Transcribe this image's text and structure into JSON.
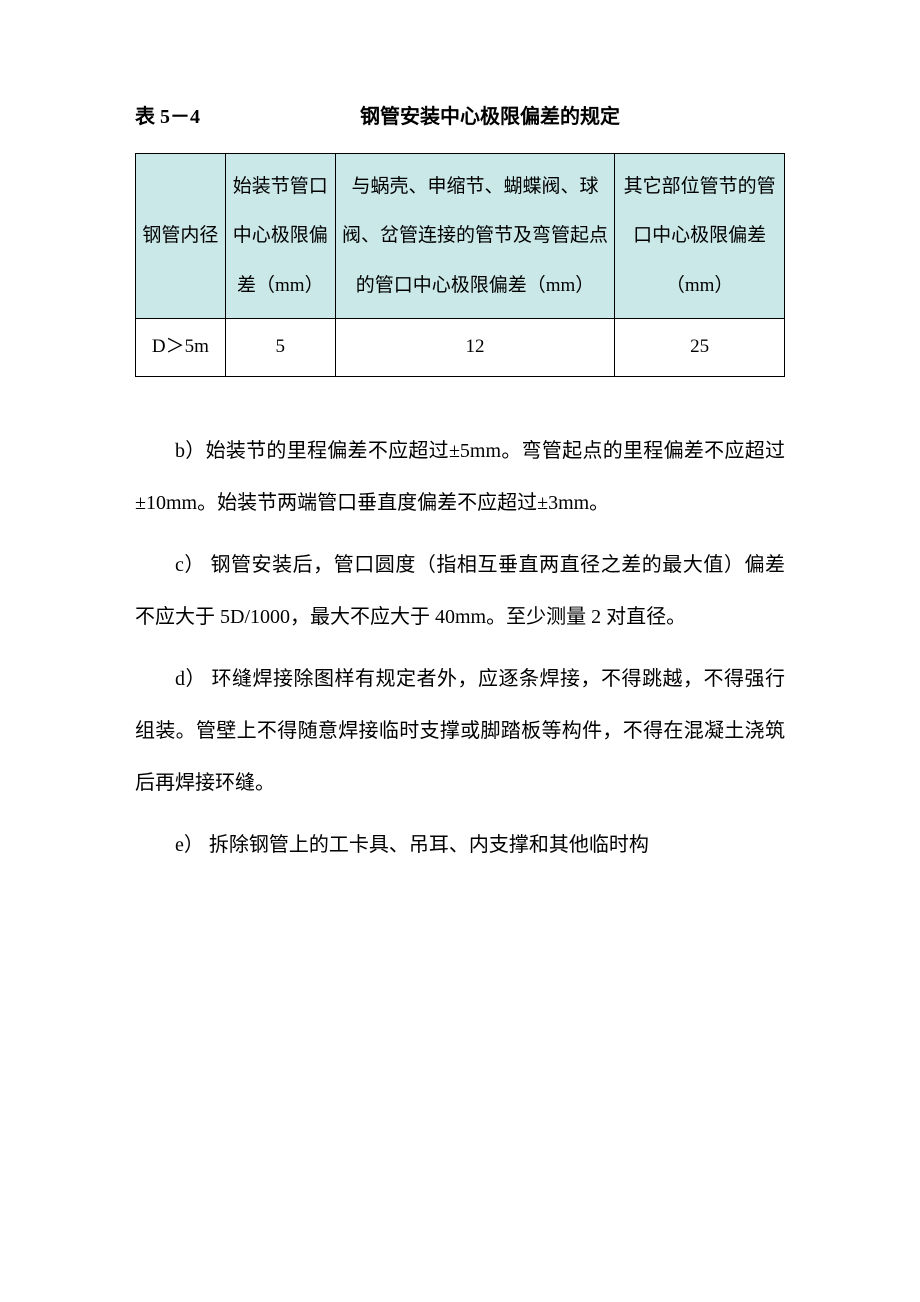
{
  "heading": {
    "table_number": "表 5－4",
    "table_title": "钢管安装中心极限偏差的规定"
  },
  "table": {
    "header_bg": "#cae8e8",
    "border_color": "#000000",
    "columns": [
      "钢管内径",
      "始装节管口中心极限偏差（mm）",
      "与蜗壳、申缩节、蝴蝶阀、球阀、岔管连接的管节及弯管起点的管口中心极限偏差（mm）",
      "其它部位管节的管口中心极限偏差（mm）"
    ],
    "rows": [
      [
        "D＞5m",
        "5",
        "12",
        "25"
      ]
    ]
  },
  "paragraphs": {
    "b": "b）始装节的里程偏差不应超过±5mm。弯管起点的里程偏差不应超过±10mm。始装节两端管口垂直度偏差不应超过±3mm。",
    "c": "c） 钢管安装后，管口圆度（指相互垂直两直径之差的最大值）偏差不应大于 5D/1000，最大不应大于 40mm。至少测量 2 对直径。",
    "d": "d） 环缝焊接除图样有规定者外，应逐条焊接，不得跳越，不得强行组装。管壁上不得随意焊接临时支撑或脚踏板等构件，不得在混凝土浇筑后再焊接环缝。",
    "e": "e） 拆除钢管上的工卡具、吊耳、内支撑和其他临时构"
  }
}
